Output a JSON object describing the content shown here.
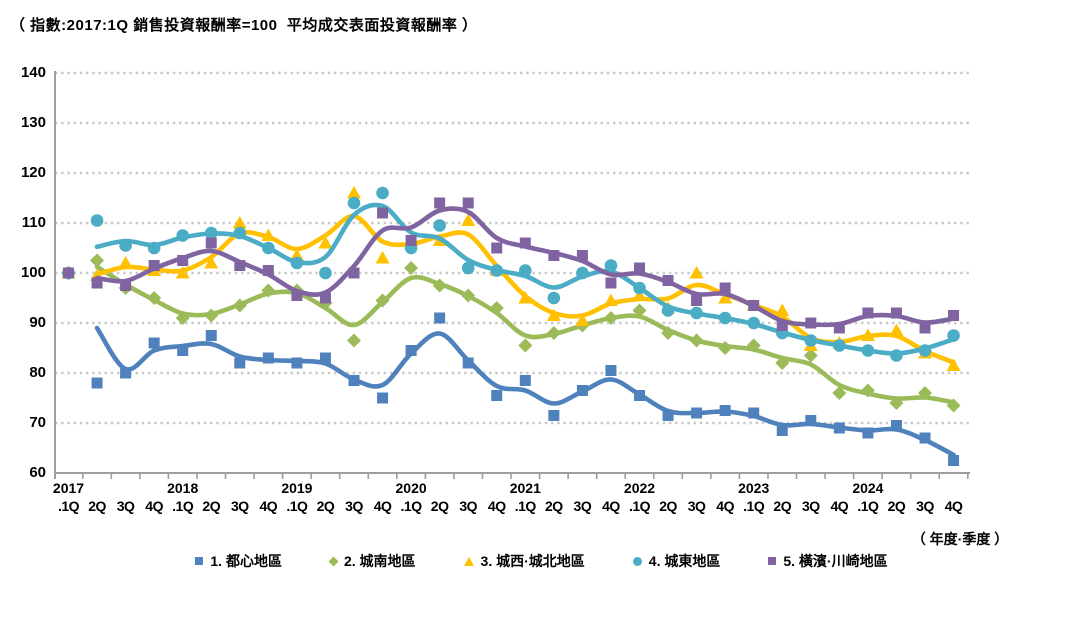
{
  "title": "（ 指數:2017:1Q 銷售投資報酬率=100  平均成交表面投資報酬率 ）",
  "axis_note": "（ 年度·季度 ）",
  "legend": {
    "items": [
      "1. 都心地區",
      "2. 城南地區",
      "3. 城西·城北地區",
      "4. 城東地區",
      "5. 橫濱·川崎地區"
    ]
  },
  "chart_data": {
    "type": "scatter",
    "subtype": "quarterly index scatter markers with smoothed trend lines",
    "title": "（ 指數:2017:1Q 銷售投資報酬率=100  平均成交表面投資報酬率 ）",
    "xlabel": "（ 年度·季度 ）",
    "ylabel": "",
    "ylim": [
      60,
      140
    ],
    "y_ticks": [
      140,
      130,
      120,
      110,
      100,
      90,
      80,
      70,
      60
    ],
    "grid": "horizontal dotted",
    "legend_position": "bottom",
    "x_years": [
      "2017",
      "2018",
      "2019",
      "2020",
      "2021",
      "2022",
      "2023",
      "2024"
    ],
    "quarter_labels": [
      ".1Q",
      "2Q",
      "3Q",
      "4Q"
    ],
    "colors": {
      "axis": "#9e9e9e",
      "gridline": "#c8c8c8",
      "series1": "#4F81BD",
      "series2": "#9BBB59",
      "series3": "#FFC000",
      "series4": "#4BACC6",
      "series5": "#8064A2"
    },
    "series": [
      {
        "name": "1. 都心地區",
        "marker": "square",
        "color": "#4F81BD",
        "values": [
          100,
          78,
          80,
          86,
          84.5,
          87.5,
          82,
          83,
          82,
          83,
          78.5,
          75,
          84.5,
          91,
          82,
          75.5,
          78.5,
          71.5,
          76.5,
          80.5,
          75.5,
          71.5,
          72,
          72.5,
          72,
          68.5,
          70.5,
          69,
          68,
          69.5,
          67,
          62.5
        ]
      },
      {
        "name": "2. 城南地區",
        "marker": "diamond",
        "color": "#9BBB59",
        "values": [
          100,
          102.5,
          97,
          95,
          91,
          91.5,
          93.5,
          96.5,
          96.5,
          94,
          86.5,
          94.5,
          101,
          97.5,
          95.5,
          93,
          85.5,
          88,
          89.5,
          91,
          92.5,
          88,
          86.5,
          85,
          85.5,
          82,
          83.5,
          76,
          76.5,
          74,
          76,
          73.5
        ]
      },
      {
        "name": "3. 城西·城北地區",
        "marker": "triangle",
        "color": "#FFC000",
        "values": [
          100,
          99.5,
          102,
          100.5,
          100,
          102,
          110,
          107.5,
          103.5,
          106,
          116,
          103,
          106.5,
          106.5,
          110.5,
          100.5,
          95,
          91.5,
          90.5,
          94.5,
          95.5,
          93,
          100,
          95,
          93.5,
          92.5,
          85.5,
          86,
          87.5,
          88.5,
          84,
          81.5
        ]
      },
      {
        "name": "4. 城東地區",
        "marker": "circle",
        "color": "#4BACC6",
        "values": [
          100,
          110.5,
          105.5,
          105,
          107.5,
          108,
          108,
          105,
          102,
          100,
          114,
          116,
          105,
          109.5,
          101,
          100.5,
          100.5,
          95,
          100,
          101.5,
          97,
          92.5,
          92,
          91,
          90,
          88,
          86.5,
          85.5,
          84.5,
          83.5,
          84.5,
          87.5
        ]
      },
      {
        "name": "5. 橫濱·川崎地區",
        "marker": "square",
        "color": "#8064A2",
        "values": [
          100,
          98,
          97.5,
          101.5,
          102.5,
          106,
          101.5,
          100.5,
          95.5,
          95,
          100,
          112,
          106.5,
          114,
          114,
          105,
          106,
          103.5,
          103.5,
          98,
          101,
          98.5,
          94.5,
          97,
          93.5,
          89.5,
          90,
          89,
          92,
          92,
          89,
          91.5
        ]
      }
    ]
  }
}
